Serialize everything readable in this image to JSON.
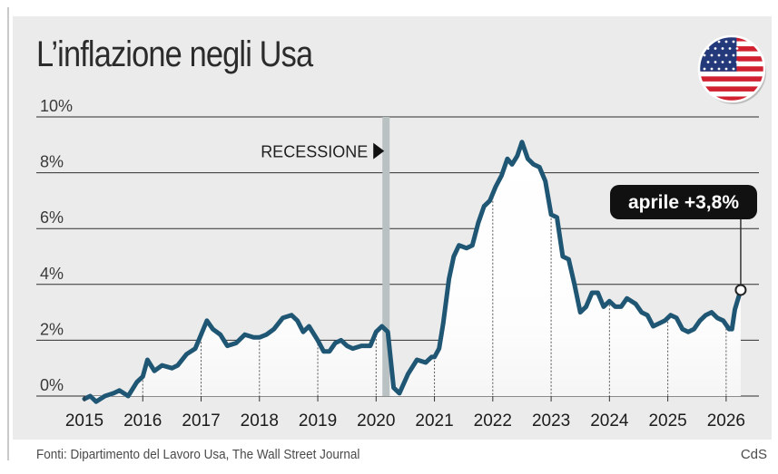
{
  "title": "L’inflazione negli Usa",
  "source": "Fonti: Dipartimento del Lavoro Usa, The Wall Street Journal",
  "credit": "CdS",
  "flag_icon": "usa-flag-icon",
  "colors": {
    "line": "#1f5674",
    "panel": "#ebebeb",
    "recession_band": "#b9c1c2",
    "callout_bg": "#111111"
  },
  "chart_data": {
    "type": "line",
    "title": "L’inflazione negli Usa",
    "xlabel": "",
    "ylabel": "",
    "x_ticks": [
      "2015",
      "2016",
      "2017",
      "2018",
      "2019",
      "2020",
      "2021",
      "2022",
      "2023",
      "2024",
      "2025",
      "2026"
    ],
    "y_ticks": [
      "0%",
      "2%",
      "4%",
      "6%",
      "8%",
      "10%"
    ],
    "ylim": [
      0,
      10
    ],
    "xlim": [
      2015.0,
      2026.5
    ],
    "grid": "horizontal",
    "recession": {
      "label": "RECESSIONE",
      "x": 2020.17
    },
    "annotation": {
      "label": "aprile +3,8%",
      "x": 2026.25,
      "y": 3.8
    },
    "series": [
      {
        "values": [
          {
            "x": 2015.0,
            "y": -0.1
          },
          {
            "x": 2015.1,
            "y": 0.0
          },
          {
            "x": 2015.2,
            "y": -0.2
          },
          {
            "x": 2015.35,
            "y": 0.0
          },
          {
            "x": 2015.5,
            "y": 0.1
          },
          {
            "x": 2015.6,
            "y": 0.2
          },
          {
            "x": 2015.75,
            "y": 0.0
          },
          {
            "x": 2015.9,
            "y": 0.5
          },
          {
            "x": 2016.0,
            "y": 0.7
          },
          {
            "x": 2016.08,
            "y": 1.3
          },
          {
            "x": 2016.2,
            "y": 0.9
          },
          {
            "x": 2016.33,
            "y": 1.1
          },
          {
            "x": 2016.5,
            "y": 1.0
          },
          {
            "x": 2016.6,
            "y": 1.1
          },
          {
            "x": 2016.75,
            "y": 1.5
          },
          {
            "x": 2016.9,
            "y": 1.7
          },
          {
            "x": 2017.0,
            "y": 2.2
          },
          {
            "x": 2017.1,
            "y": 2.7
          },
          {
            "x": 2017.2,
            "y": 2.4
          },
          {
            "x": 2017.33,
            "y": 2.2
          },
          {
            "x": 2017.45,
            "y": 1.8
          },
          {
            "x": 2017.6,
            "y": 1.9
          },
          {
            "x": 2017.75,
            "y": 2.2
          },
          {
            "x": 2017.9,
            "y": 2.1
          },
          {
            "x": 2018.0,
            "y": 2.1
          },
          {
            "x": 2018.12,
            "y": 2.2
          },
          {
            "x": 2018.25,
            "y": 2.4
          },
          {
            "x": 2018.4,
            "y": 2.8
          },
          {
            "x": 2018.55,
            "y": 2.9
          },
          {
            "x": 2018.65,
            "y": 2.7
          },
          {
            "x": 2018.75,
            "y": 2.3
          },
          {
            "x": 2018.85,
            "y": 2.5
          },
          {
            "x": 2019.0,
            "y": 2.0
          },
          {
            "x": 2019.1,
            "y": 1.6
          },
          {
            "x": 2019.2,
            "y": 1.6
          },
          {
            "x": 2019.3,
            "y": 1.9
          },
          {
            "x": 2019.4,
            "y": 2.0
          },
          {
            "x": 2019.5,
            "y": 1.8
          },
          {
            "x": 2019.6,
            "y": 1.7
          },
          {
            "x": 2019.75,
            "y": 1.8
          },
          {
            "x": 2019.9,
            "y": 1.8
          },
          {
            "x": 2020.0,
            "y": 2.3
          },
          {
            "x": 2020.1,
            "y": 2.5
          },
          {
            "x": 2020.2,
            "y": 2.3
          },
          {
            "x": 2020.3,
            "y": 0.3
          },
          {
            "x": 2020.4,
            "y": 0.1
          },
          {
            "x": 2020.55,
            "y": 0.8
          },
          {
            "x": 2020.7,
            "y": 1.3
          },
          {
            "x": 2020.85,
            "y": 1.2
          },
          {
            "x": 2020.95,
            "y": 1.4
          },
          {
            "x": 2021.0,
            "y": 1.4
          },
          {
            "x": 2021.08,
            "y": 1.7
          },
          {
            "x": 2021.15,
            "y": 2.6
          },
          {
            "x": 2021.25,
            "y": 4.2
          },
          {
            "x": 2021.33,
            "y": 5.0
          },
          {
            "x": 2021.42,
            "y": 5.4
          },
          {
            "x": 2021.55,
            "y": 5.3
          },
          {
            "x": 2021.65,
            "y": 5.4
          },
          {
            "x": 2021.75,
            "y": 6.2
          },
          {
            "x": 2021.85,
            "y": 6.8
          },
          {
            "x": 2021.95,
            "y": 7.0
          },
          {
            "x": 2022.05,
            "y": 7.5
          },
          {
            "x": 2022.15,
            "y": 7.9
          },
          {
            "x": 2022.25,
            "y": 8.5
          },
          {
            "x": 2022.33,
            "y": 8.3
          },
          {
            "x": 2022.42,
            "y": 8.6
          },
          {
            "x": 2022.5,
            "y": 9.1
          },
          {
            "x": 2022.6,
            "y": 8.5
          },
          {
            "x": 2022.7,
            "y": 8.3
          },
          {
            "x": 2022.8,
            "y": 8.2
          },
          {
            "x": 2022.9,
            "y": 7.7
          },
          {
            "x": 2023.0,
            "y": 6.5
          },
          {
            "x": 2023.1,
            "y": 6.4
          },
          {
            "x": 2023.2,
            "y": 5.0
          },
          {
            "x": 2023.3,
            "y": 4.9
          },
          {
            "x": 2023.4,
            "y": 4.0
          },
          {
            "x": 2023.5,
            "y": 3.0
          },
          {
            "x": 2023.6,
            "y": 3.2
          },
          {
            "x": 2023.7,
            "y": 3.7
          },
          {
            "x": 2023.8,
            "y": 3.7
          },
          {
            "x": 2023.9,
            "y": 3.2
          },
          {
            "x": 2024.0,
            "y": 3.4
          },
          {
            "x": 2024.1,
            "y": 3.2
          },
          {
            "x": 2024.2,
            "y": 3.2
          },
          {
            "x": 2024.3,
            "y": 3.5
          },
          {
            "x": 2024.45,
            "y": 3.3
          },
          {
            "x": 2024.55,
            "y": 3.0
          },
          {
            "x": 2024.65,
            "y": 2.9
          },
          {
            "x": 2024.75,
            "y": 2.5
          },
          {
            "x": 2024.85,
            "y": 2.6
          },
          {
            "x": 2024.95,
            "y": 2.7
          },
          {
            "x": 2025.05,
            "y": 2.9
          },
          {
            "x": 2025.15,
            "y": 2.8
          },
          {
            "x": 2025.25,
            "y": 2.4
          },
          {
            "x": 2025.35,
            "y": 2.3
          },
          {
            "x": 2025.45,
            "y": 2.4
          },
          {
            "x": 2025.55,
            "y": 2.7
          },
          {
            "x": 2025.65,
            "y": 2.9
          },
          {
            "x": 2025.75,
            "y": 3.0
          },
          {
            "x": 2025.85,
            "y": 2.8
          },
          {
            "x": 2025.95,
            "y": 2.7
          },
          {
            "x": 2026.05,
            "y": 2.4
          },
          {
            "x": 2026.1,
            "y": 2.4
          },
          {
            "x": 2026.15,
            "y": 3.1
          },
          {
            "x": 2026.25,
            "y": 3.8
          }
        ]
      }
    ]
  }
}
